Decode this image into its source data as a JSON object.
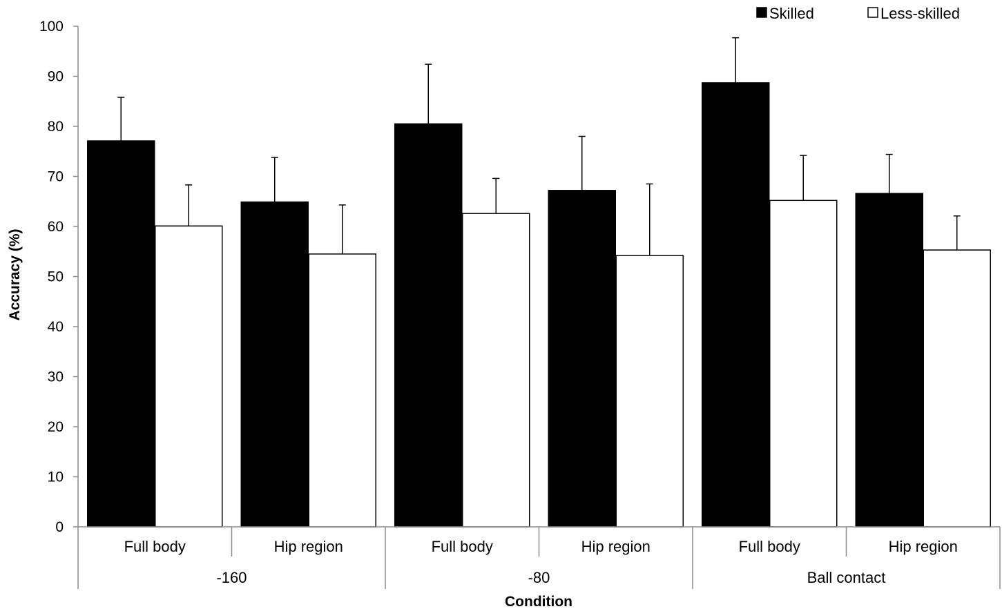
{
  "chart_data": {
    "type": "bar",
    "title": "",
    "xlabel": "Condition",
    "ylabel": "Accuracy (%)",
    "ylim": [
      0,
      100
    ],
    "yticks": [
      0,
      10,
      20,
      30,
      40,
      50,
      60,
      70,
      80,
      90,
      100
    ],
    "grid": false,
    "legend_position": "top-right",
    "groups": [
      {
        "label": "-160",
        "categories": [
          "Full body",
          "Hip region"
        ]
      },
      {
        "label": "-80",
        "categories": [
          "Full body",
          "Hip region"
        ]
      },
      {
        "label": "Ball contact",
        "categories": [
          "Full body",
          "Hip region"
        ]
      }
    ],
    "categories": [
      "Full body",
      "Hip region",
      "Full body",
      "Hip region",
      "Full body",
      "Hip region"
    ],
    "series": [
      {
        "name": "Skilled",
        "color": "#000000",
        "values": [
          77.1,
          64.9,
          80.5,
          67.2,
          88.7,
          66.6
        ],
        "errors": [
          8.7,
          8.9,
          11.9,
          10.8,
          9.0,
          7.8
        ]
      },
      {
        "name": "Less-skilled",
        "color": "#ffffff",
        "values": [
          60.1,
          54.5,
          62.6,
          54.2,
          65.2,
          55.3
        ],
        "errors": [
          8.2,
          9.8,
          7.0,
          14.3,
          9.0,
          6.8
        ]
      }
    ]
  }
}
